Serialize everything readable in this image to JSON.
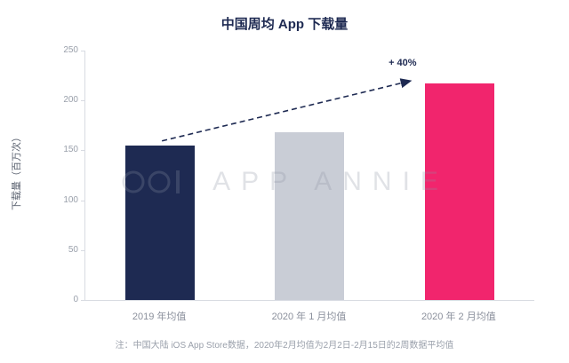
{
  "title": "中国周均 App 下载量",
  "chart_data": {
    "type": "bar",
    "title": "中国周均 App 下载量",
    "categories": [
      "2019 年均值",
      "2020 年 1 月均值",
      "2020 年 2 月均值"
    ],
    "values": [
      155,
      168,
      217
    ],
    "bar_colors": [
      "#1e2a52",
      "#c9cdd6",
      "#f1256d"
    ],
    "xlabel": "",
    "ylabel": "下载量（百万次）",
    "ylim": [
      0,
      250
    ],
    "yticks": [
      0,
      50,
      100,
      150,
      200,
      250
    ],
    "grid": "off",
    "legend": "none",
    "annotation": "+ 40%",
    "annotation_color": "#1e2a52"
  },
  "watermark": "APP ANNIE",
  "footnote": "注：中国大陆 iOS App Store数据，2020年2月均值为2月2日-2月15日的2周数据平均值"
}
